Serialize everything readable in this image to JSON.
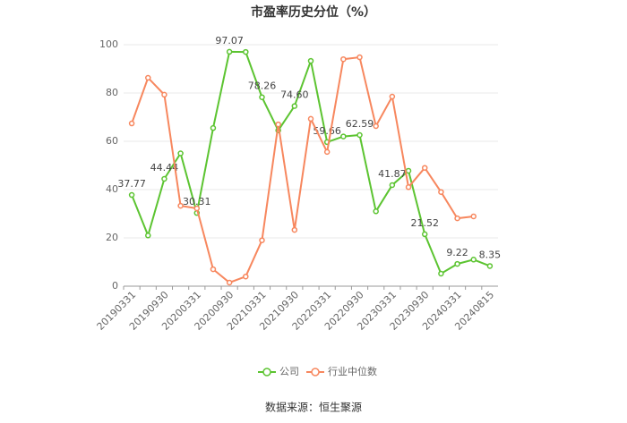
{
  "chart_data": {
    "type": "line",
    "title": "市盈率历史分位（%）",
    "source": "数据来源：恒生聚源",
    "categories": [
      "20190331",
      null,
      "20190930",
      null,
      "20200331",
      null,
      "20200930",
      null,
      "20210331",
      null,
      "20210930",
      null,
      "20220331",
      null,
      "20220930",
      null,
      "20230331",
      null,
      "20230930",
      null,
      "20240331",
      null,
      "20240815"
    ],
    "series": [
      {
        "name": "公司",
        "color": "#5cc431",
        "values": [
          37.77,
          21,
          44.44,
          55,
          30.31,
          65.5,
          97.07,
          97,
          78.26,
          64.5,
          74.6,
          93.3,
          59.66,
          62,
          62.59,
          31,
          41.87,
          47.8,
          21.52,
          5.2,
          9.22,
          11,
          8.35
        ],
        "value_labels": [
          "37.77",
          null,
          "44.44",
          null,
          "30.31",
          null,
          "97.07",
          null,
          "78.26",
          null,
          "74.60",
          null,
          "59.66",
          null,
          "62.59",
          null,
          "41.87",
          null,
          "21.52",
          null,
          "9.22",
          null,
          "8.35"
        ]
      },
      {
        "name": "行业中位数",
        "color": "#f7875e",
        "values": [
          67.4,
          86.3,
          79.3,
          33.3,
          32.2,
          7,
          1.5,
          4,
          19,
          67,
          23.3,
          69.3,
          55.6,
          94,
          94.8,
          66.3,
          78.5,
          41,
          49,
          39,
          28.1,
          28.9,
          null
        ]
      }
    ],
    "ylim": [
      0,
      100
    ],
    "yticks": [
      0,
      20,
      40,
      60,
      80,
      100
    ],
    "grid": true,
    "legend": "bottom"
  }
}
